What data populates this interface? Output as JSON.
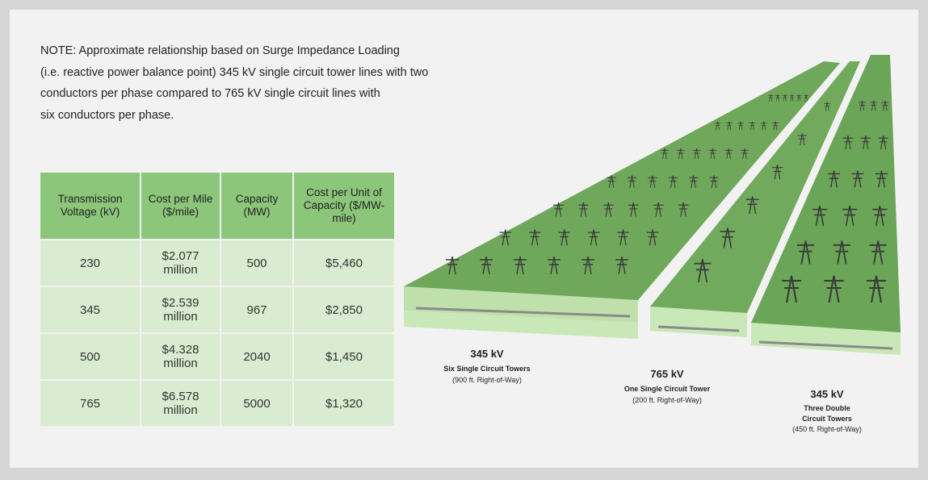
{
  "note": {
    "lines": [
      "NOTE: Approximate relationship based on Surge Impedance Loading",
      "(i.e. reactive power balance point) 345 kV single circuit tower lines with two",
      "conductors per phase compared to 765 kV single circuit lines with",
      "six conductors per phase."
    ]
  },
  "table": {
    "header": [
      "Transmission Voltage (kV)",
      "Cost per Mile ($/mile)",
      "Capacity (MW)",
      "Cost per Unit of Capacity ($/MW-mile)"
    ],
    "rows": [
      [
        "230",
        "$2.077 million",
        "500",
        "$5,460"
      ],
      [
        "345",
        "$2.539 million",
        "967",
        "$2,850"
      ],
      [
        "500",
        "$4.328 million",
        "2040",
        "$1,450"
      ],
      [
        "765",
        "$6.578 million",
        "5000",
        "$1,320"
      ]
    ]
  },
  "illustration": {
    "labels": [
      {
        "voltage": "345 kV",
        "towers": "Six Single Circuit Towers",
        "row": "(900 ft. Right-of-Way)"
      },
      {
        "voltage": "765 kV",
        "towers": "One Single Circuit Tower",
        "row": "(200 ft. Right-of-Way)"
      },
      {
        "voltage": "345 kV",
        "towers": "Three Double Circuit Towers",
        "row": "(450 ft. Right-of-Way)"
      }
    ]
  }
}
